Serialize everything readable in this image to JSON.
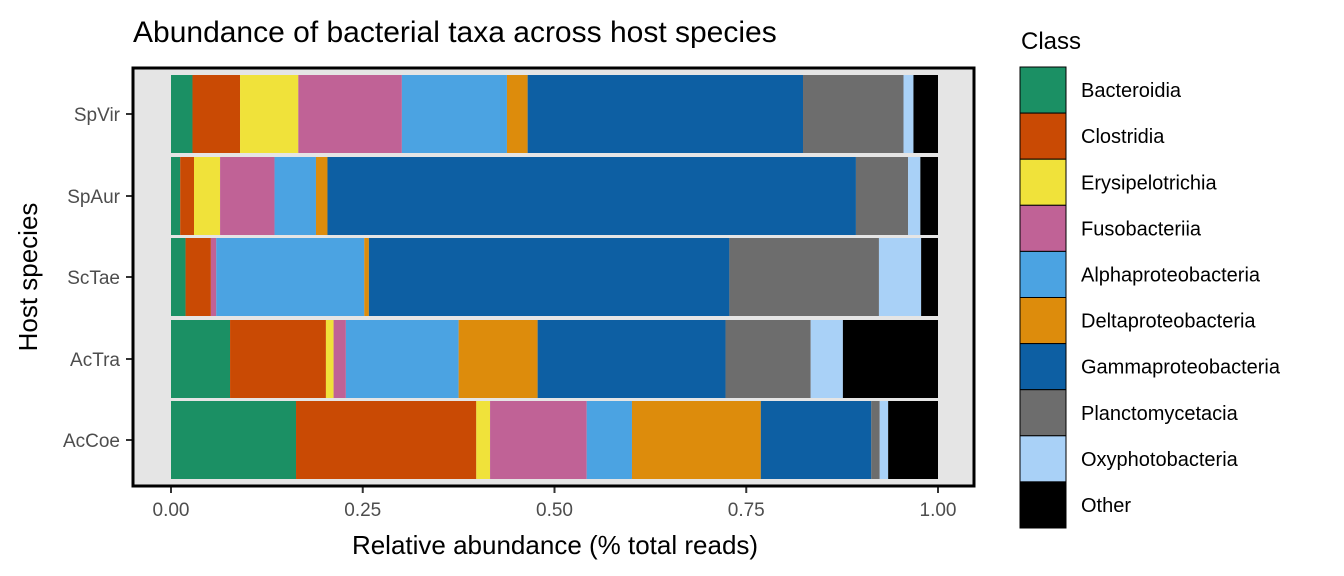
{
  "chart_data": {
    "type": "bar",
    "orientation": "horizontal",
    "stacked": true,
    "title": "Abundance of bacterial taxa across host species",
    "xlabel": "Relative abundance (% total reads)",
    "ylabel": "Host species",
    "xlim": [
      0,
      1
    ],
    "xticks": [
      "0.00",
      "0.25",
      "0.50",
      "0.75",
      "1.00"
    ],
    "xtick_values": [
      0,
      0.25,
      0.5,
      0.75,
      1.0
    ],
    "categories": [
      "SpVir",
      "SpAur",
      "ScTae",
      "AcTra",
      "AcCoe"
    ],
    "legend_title": "Class",
    "legend_position": "right",
    "background_color": "#e5e5e5",
    "grid": false,
    "series": [
      {
        "name": "Bacteroidia",
        "color": "#1b9064",
        "values": [
          0.028,
          0.012,
          0.019,
          0.077,
          0.163
        ]
      },
      {
        "name": "Clostridia",
        "color": "#c94a04",
        "values": [
          0.062,
          0.018,
          0.033,
          0.125,
          0.235
        ]
      },
      {
        "name": "Erysipelotrichia",
        "color": "#f0e23a",
        "values": [
          0.076,
          0.034,
          0.0,
          0.01,
          0.018
        ]
      },
      {
        "name": "Fusobacteriia",
        "color": "#c06296",
        "values": [
          0.135,
          0.071,
          0.007,
          0.016,
          0.126
        ]
      },
      {
        "name": "Alphaproteobacteria",
        "color": "#4ba3e2",
        "values": [
          0.137,
          0.054,
          0.193,
          0.147,
          0.059
        ]
      },
      {
        "name": "Deltaproteobacteria",
        "color": "#dd8c0c",
        "values": [
          0.027,
          0.015,
          0.006,
          0.103,
          0.168
        ]
      },
      {
        "name": "Gammaproteobacteria",
        "color": "#0d5fa3",
        "values": [
          0.359,
          0.689,
          0.47,
          0.245,
          0.144
        ]
      },
      {
        "name": "Planctomycetacia",
        "color": "#6d6d6d",
        "values": [
          0.131,
          0.068,
          0.195,
          0.111,
          0.011
        ]
      },
      {
        "name": "Oxyphotobacteria",
        "color": "#a9d1f7",
        "values": [
          0.013,
          0.016,
          0.055,
          0.042,
          0.011
        ]
      },
      {
        "name": "Other",
        "color": "#000000",
        "values": [
          0.032,
          0.023,
          0.022,
          0.124,
          0.065
        ]
      }
    ]
  }
}
